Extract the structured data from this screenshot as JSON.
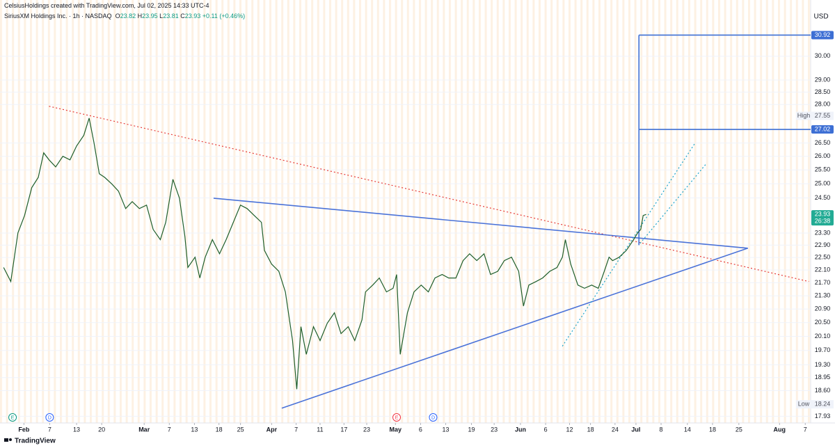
{
  "header": {
    "caption": "CelsiusHoldings created with TradingView.com, Jul 02, 2025 14:33 UTC-4"
  },
  "chart_data": {
    "type": "line",
    "title": "SiriusXM Holdings Inc. · 1h · NASDAQ",
    "ohlc": {
      "open_label": "O",
      "open": 23.82,
      "high_label": "H",
      "high": 23.95,
      "low_label": "L",
      "low": 23.81,
      "close_label": "C",
      "close": 23.93,
      "change": "+0.11 (+0.46%)"
    },
    "currency": "USD",
    "color": "#1e5e2a",
    "x": [
      -3.4,
      -2.2,
      -1.0,
      0.1,
      1.3,
      2.4,
      3.3,
      4.2,
      5.3,
      6.5,
      7.7,
      8.8,
      10.0,
      10.9,
      11.7,
      12.6,
      13.5,
      14.7,
      15.8,
      17.0,
      18.1,
      19.3,
      20.5,
      21.6,
      22.8,
      23.7,
      24.9,
      26.0,
      26.9,
      27.4,
      28.6,
      29.4,
      30.3,
      31.5,
      32.7,
      33.8,
      35.0,
      36.2,
      37.3,
      38.5,
      39.7,
      40.2,
      41.4,
      42.6,
      43.7,
      44.9,
      45.6,
      46.3,
      47.2,
      48.4,
      49.5,
      50.7,
      51.9,
      53.0,
      54.2,
      55.3,
      56.5,
      57.1,
      58.3,
      59.4,
      60.6,
      61.7,
      62.3,
      62.9,
      64.1,
      65.2,
      66.4,
      67.6,
      68.7,
      69.9,
      71.0,
      72.2,
      73.4,
      74.5,
      75.7,
      76.9,
      78.0,
      79.2,
      80.3,
      81.5,
      82.7,
      83.5,
      84.4,
      85.6,
      86.7,
      87.9,
      89.1,
      90.0,
      90.5,
      91.4,
      92.6,
      93.7,
      94.9,
      96.0,
      97.0,
      97.8,
      98.4,
      99.5,
      100.7,
      101.9,
      102.6,
      103.1,
      103.5,
      104.0
    ],
    "values": [
      22.18,
      21.74,
      23.31,
      23.89,
      24.86,
      25.23,
      26.13,
      25.87,
      25.61,
      26.0,
      25.87,
      26.39,
      26.79,
      27.46,
      26.52,
      25.36,
      25.23,
      24.99,
      24.74,
      24.13,
      24.37,
      24.13,
      24.25,
      23.42,
      23.08,
      23.66,
      25.16,
      24.49,
      23.19,
      22.18,
      22.51,
      21.85,
      22.51,
      23.08,
      22.62,
      23.08,
      23.66,
      24.25,
      24.13,
      23.89,
      23.66,
      22.73,
      22.29,
      22.06,
      21.42,
      19.98,
      18.64,
      20.38,
      19.59,
      20.38,
      19.98,
      20.48,
      20.79,
      20.18,
      20.38,
      19.98,
      20.58,
      21.42,
      21.63,
      21.85,
      21.42,
      21.53,
      21.96,
      19.59,
      20.79,
      21.42,
      21.63,
      21.42,
      21.85,
      21.96,
      21.85,
      21.85,
      22.4,
      22.62,
      22.4,
      22.62,
      21.96,
      22.06,
      22.4,
      22.51,
      22.06,
      20.99,
      21.63,
      21.74,
      21.85,
      22.06,
      22.18,
      22.51,
      23.08,
      22.29,
      21.63,
      21.53,
      21.63,
      21.53,
      22.06,
      22.51,
      22.4,
      22.51,
      22.73,
      23.08,
      23.31,
      23.42,
      23.89,
      23.93
    ],
    "xlim": [
      -4,
      131.5
    ],
    "xticks": [
      {
        "value": 0,
        "label": "Feb"
      },
      {
        "value": 4.3,
        "label": "7"
      },
      {
        "value": 8.8,
        "label": "13"
      },
      {
        "value": 13,
        "label": "20"
      },
      {
        "value": 20.1,
        "label": "Mar"
      },
      {
        "value": 24.3,
        "label": "7"
      },
      {
        "value": 28.5,
        "label": "13"
      },
      {
        "value": 32.6,
        "label": "18"
      },
      {
        "value": 36.2,
        "label": "25"
      },
      {
        "value": 41.4,
        "label": "Apr"
      },
      {
        "value": 45.5,
        "label": "7"
      },
      {
        "value": 49.5,
        "label": "11"
      },
      {
        "value": 53.5,
        "label": "17"
      },
      {
        "value": 57.3,
        "label": "23"
      },
      {
        "value": 62.1,
        "label": "May"
      },
      {
        "value": 66.3,
        "label": "6"
      },
      {
        "value": 70.5,
        "label": "13"
      },
      {
        "value": 74.8,
        "label": "19"
      },
      {
        "value": 78.6,
        "label": "23"
      },
      {
        "value": 83,
        "label": "Jun"
      },
      {
        "value": 87.2,
        "label": "6"
      },
      {
        "value": 91.2,
        "label": "12"
      },
      {
        "value": 94.7,
        "label": "18"
      },
      {
        "value": 98.8,
        "label": "24"
      },
      {
        "value": 102.3,
        "label": "Jul"
      },
      {
        "value": 106.5,
        "label": "8"
      },
      {
        "value": 110.9,
        "label": "14"
      },
      {
        "value": 115.1,
        "label": "18"
      },
      {
        "value": 119.5,
        "label": "25"
      },
      {
        "value": 126.3,
        "label": "Aug"
      },
      {
        "value": 130.6,
        "label": "7"
      }
    ],
    "ylim": [
      17.76,
      32.19
    ],
    "yticks": [
      {
        "value": 30,
        "label": "30.00"
      },
      {
        "value": 29,
        "label": "29.00"
      },
      {
        "value": 28.5,
        "label": "28.50"
      },
      {
        "value": 28,
        "label": "28.00"
      },
      {
        "value": 26.5,
        "label": "26.50"
      },
      {
        "value": 26,
        "label": "26.00"
      },
      {
        "value": 25.5,
        "label": "25.50"
      },
      {
        "value": 25,
        "label": "25.00"
      },
      {
        "value": 24.5,
        "label": "24.50"
      },
      {
        "value": 23.3,
        "label": "23.30"
      },
      {
        "value": 22.9,
        "label": "22.90"
      },
      {
        "value": 22.5,
        "label": "22.50"
      },
      {
        "value": 22.1,
        "label": "22.10"
      },
      {
        "value": 21.7,
        "label": "21.70"
      },
      {
        "value": 21.3,
        "label": "21.30"
      },
      {
        "value": 20.9,
        "label": "20.90"
      },
      {
        "value": 20.5,
        "label": "20.50"
      },
      {
        "value": 20.1,
        "label": "20.10"
      },
      {
        "value": 19.7,
        "label": "19.70"
      },
      {
        "value": 19.3,
        "label": "19.30"
      },
      18.95,
      {
        "value": 18.6,
        "label": "18.60"
      },
      17.93
    ],
    "log_scale": true,
    "grid": true,
    "lines": [
      {
        "x": [
          4.2,
          131.2
        ],
        "y": [
          27.93,
          21.74
        ],
        "color": "#e53935",
        "dashed": true
      },
      {
        "x": [
          31.7,
          121.0
        ],
        "y": [
          24.49,
          22.8
        ],
        "color": "#4a72d8",
        "dashed": false
      },
      {
        "x": [
          43.1,
          121.0
        ],
        "y": [
          18.14,
          22.8
        ],
        "color": "#4a72d8",
        "dashed": false
      },
      {
        "x": [
          90.0,
          112.1
        ],
        "y": [
          19.82,
          26.47
        ],
        "color": "#1aa3c9",
        "dashed": true
      },
      {
        "x": [
          103.0,
          114.1
        ],
        "y": [
          22.96,
          25.74
        ],
        "color": "#1aa3c9",
        "dashed": true
      },
      {
        "x": [
          102.8,
          102.8
        ],
        "y": [
          22.9,
          30.92
        ],
        "color": "#3d6fd4",
        "dashed": false
      }
    ],
    "levels": [
      {
        "value": 30.92,
        "x": 102.8,
        "color": "#3d6fd4"
      },
      {
        "value": 27.02,
        "x": 102.8,
        "color": "#3d6fd4"
      }
    ],
    "last_price": {
      "value": 23.93,
      "countdown": "26:38",
      "color": "#22ab94"
    },
    "high_marker": {
      "label": "High",
      "value": 27.55
    },
    "low_marker": {
      "label": "Low",
      "value": 18.24
    },
    "events": [
      {
        "label": "E",
        "x": -1.9,
        "color": "#089981"
      },
      {
        "label": "D",
        "x": 4.3,
        "color": "#2962ff"
      },
      {
        "label": "E",
        "x": 62.3,
        "color": "#f23645"
      },
      {
        "label": "D",
        "x": 68.4,
        "color": "#2962ff"
      }
    ]
  },
  "footer": {
    "brand": "TradingView"
  }
}
